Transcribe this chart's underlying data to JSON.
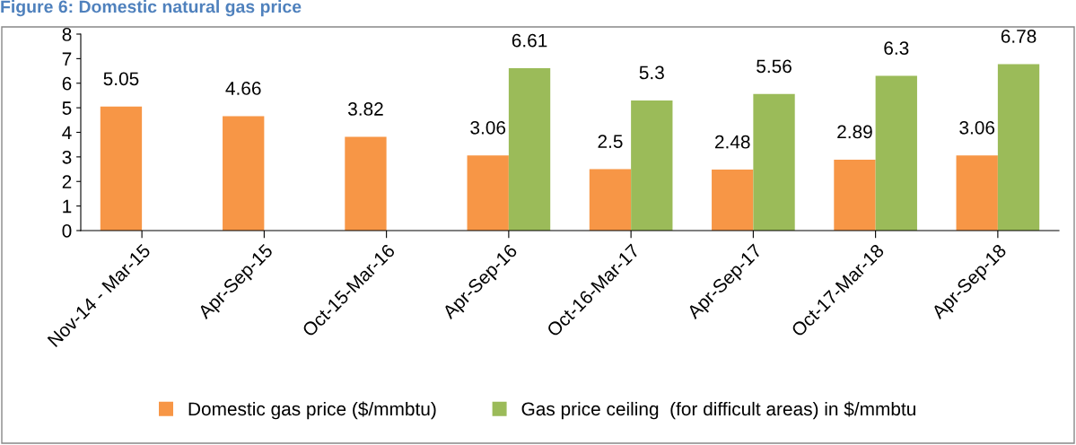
{
  "chart_data": {
    "type": "bar",
    "title": "Figure 6: Domestic natural gas price",
    "categories": [
      "Nov-14 - Mar-15",
      "Apr-Sep-15",
      "Oct-15-Mar-16",
      "Apr-Sep-16",
      "Oct-16-Mar-17",
      "Apr-Sep-17",
      "Oct-17-Mar-18",
      "Apr-Sep-18"
    ],
    "series": [
      {
        "name": "Domestic gas price ($/mmbtu)",
        "color": "#f79646",
        "values": [
          5.05,
          4.66,
          3.82,
          3.06,
          2.5,
          2.48,
          2.89,
          3.06
        ]
      },
      {
        "name": "Gas price ceiling  (for difficult areas) in $/mmbtu",
        "color": "#9bbb59",
        "values": [
          null,
          null,
          null,
          6.61,
          5.3,
          5.56,
          6.3,
          6.78
        ]
      }
    ],
    "ylim": [
      0,
      8
    ],
    "yticks": [
      0,
      1,
      2,
      3,
      4,
      5,
      6,
      7,
      8
    ],
    "data_labels": true,
    "grid": false,
    "legend": "bottom"
  }
}
